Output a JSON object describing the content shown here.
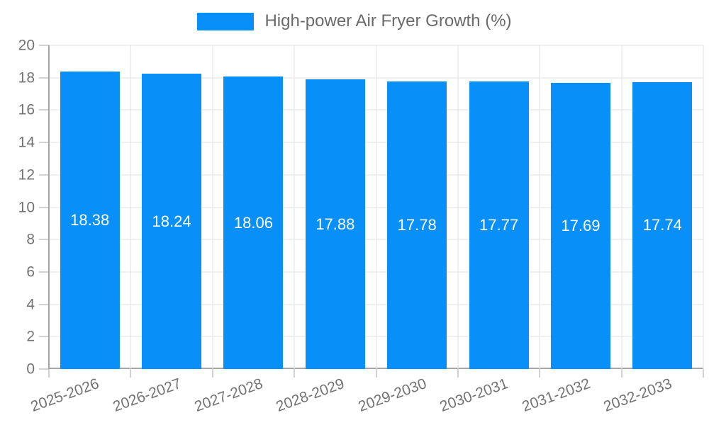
{
  "legend": {
    "label": "High-power Air Fryer Growth (%)"
  },
  "chart_data": {
    "type": "bar",
    "title": "",
    "series": [
      {
        "name": "High-power Air Fryer Growth (%)",
        "values": [
          18.38,
          18.24,
          18.06,
          17.88,
          17.78,
          17.77,
          17.69,
          17.74
        ],
        "value_labels": [
          "18.38",
          "18.24",
          "18.06",
          "17.88",
          "17.78",
          "17.77",
          "17.69",
          "17.74"
        ]
      }
    ],
    "categories": [
      "2025-2026",
      "2026-2027",
      "2027-2028",
      "2028-2029",
      "2029-2030",
      "2030-2031",
      "2031-2032",
      "2032-2033"
    ],
    "xlabel": "",
    "ylabel": "",
    "ylim": [
      0,
      20
    ],
    "yticks": [
      0,
      2,
      4,
      6,
      8,
      10,
      12,
      14,
      16,
      18,
      20
    ],
    "grid": true,
    "legend_position": "top-center",
    "bar_label_position": "inside-middle",
    "x_label_rotation_deg": -20,
    "colors": {
      "bar": "#0890F8",
      "bar_label": "#FFFFFF",
      "grid_line": "#E2E2E2",
      "axis_line": "#A6A6A6",
      "tick_text": "#737373",
      "legend_text": "#6A6A6A",
      "background": "#FFFFFF"
    }
  }
}
